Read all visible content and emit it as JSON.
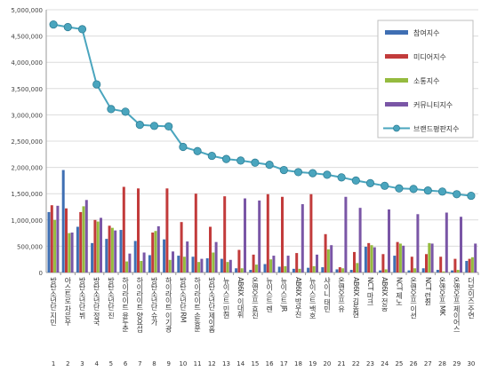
{
  "chart_data": {
    "type": "bar",
    "title": "",
    "xlabel": "",
    "ylabel": "",
    "ylim": [
      0,
      5000000
    ],
    "yticks": [
      "0",
      "500,000",
      "1,000,000",
      "1,500,000",
      "2,000,000",
      "2,500,000",
      "3,000,000",
      "3,500,000",
      "4,000,000",
      "4,500,000",
      "5,000,000"
    ],
    "categories": [
      "방탄소년단 지민",
      "아스트로 차은우",
      "방탄소년단 뷔",
      "방탄소년단 정국",
      "방탄소년단 진",
      "하이라이트 윤두준",
      "하이라이트 양요섭",
      "방탄소년단 슈가",
      "하이라이트 이기광",
      "방탄소년단 RM",
      "하이라이트 손동운",
      "방탄소년단 제이홉",
      "뉴이스트 민현",
      "AB6IX 이대휘",
      "온앤오프 효진",
      "뉴이스트 렌",
      "뉴이스트 JR",
      "AB6IX 박우진",
      "뉴이스트 백호",
      "샤이니 태민",
      "온앤오프 유",
      "AB6IX 김동현",
      "NCT 마크",
      "AB6IX 전웅",
      "NCT 제노",
      "온앤오프 이션",
      "NCT 런쥔",
      "온앤오프 MK",
      "온앤오프 제이어스",
      "더보이즈 주연"
    ],
    "x_numbers": [
      "1",
      "2",
      "3",
      "4",
      "5",
      "6",
      "7",
      "8",
      "9",
      "10",
      "11",
      "12",
      "13",
      "14",
      "15",
      "16",
      "17",
      "18",
      "19",
      "20",
      "21",
      "22",
      "23",
      "24",
      "25",
      "26",
      "27",
      "28",
      "29",
      "30"
    ],
    "legend_position": "top-right",
    "grid": true,
    "series": [
      {
        "name": "참여지수",
        "kind": "bar",
        "color": "#3f6fb3",
        "values": [
          1150000,
          1950000,
          870000,
          560000,
          640000,
          810000,
          600000,
          330000,
          630000,
          320000,
          300000,
          270000,
          260000,
          80000,
          50000,
          160000,
          110000,
          70000,
          90000,
          100000,
          60000,
          50000,
          490000,
          40000,
          320000,
          40000,
          80000,
          50000,
          40000,
          220000
        ]
      },
      {
        "name": "미디어지수",
        "kind": "bar",
        "color": "#c23b3b",
        "values": [
          1280000,
          1220000,
          1150000,
          1000000,
          890000,
          1630000,
          1600000,
          760000,
          1600000,
          960000,
          1500000,
          870000,
          1450000,
          430000,
          340000,
          1490000,
          1440000,
          370000,
          1490000,
          730000,
          100000,
          390000,
          560000,
          350000,
          580000,
          300000,
          350000,
          300000,
          260000,
          260000
        ]
      },
      {
        "name": "소통지수",
        "kind": "bar",
        "color": "#95bb3f",
        "values": [
          1000000,
          750000,
          1260000,
          970000,
          850000,
          210000,
          220000,
          790000,
          240000,
          300000,
          200000,
          380000,
          200000,
          80000,
          150000,
          250000,
          120000,
          70000,
          120000,
          440000,
          80000,
          180000,
          520000,
          60000,
          550000,
          80000,
          560000,
          20000,
          50000,
          290000
        ]
      },
      {
        "name": "커뮤니티지수",
        "kind": "bar",
        "color": "#7a56a6",
        "values": [
          1270000,
          760000,
          1380000,
          1040000,
          800000,
          360000,
          380000,
          880000,
          400000,
          590000,
          260000,
          580000,
          240000,
          1410000,
          1370000,
          320000,
          320000,
          1300000,
          340000,
          520000,
          1440000,
          1230000,
          480000,
          1200000,
          510000,
          1110000,
          550000,
          1140000,
          1060000,
          550000
        ]
      },
      {
        "name": "브랜드평판지수",
        "kind": "line",
        "color": "#4aa5be",
        "values": [
          4720000,
          4670000,
          4630000,
          3580000,
          3110000,
          3060000,
          2810000,
          2790000,
          2780000,
          2390000,
          2310000,
          2220000,
          2160000,
          2130000,
          2090000,
          2050000,
          1950000,
          1910000,
          1890000,
          1860000,
          1810000,
          1750000,
          1700000,
          1650000,
          1600000,
          1590000,
          1560000,
          1540000,
          1490000,
          1460000
        ]
      }
    ]
  }
}
